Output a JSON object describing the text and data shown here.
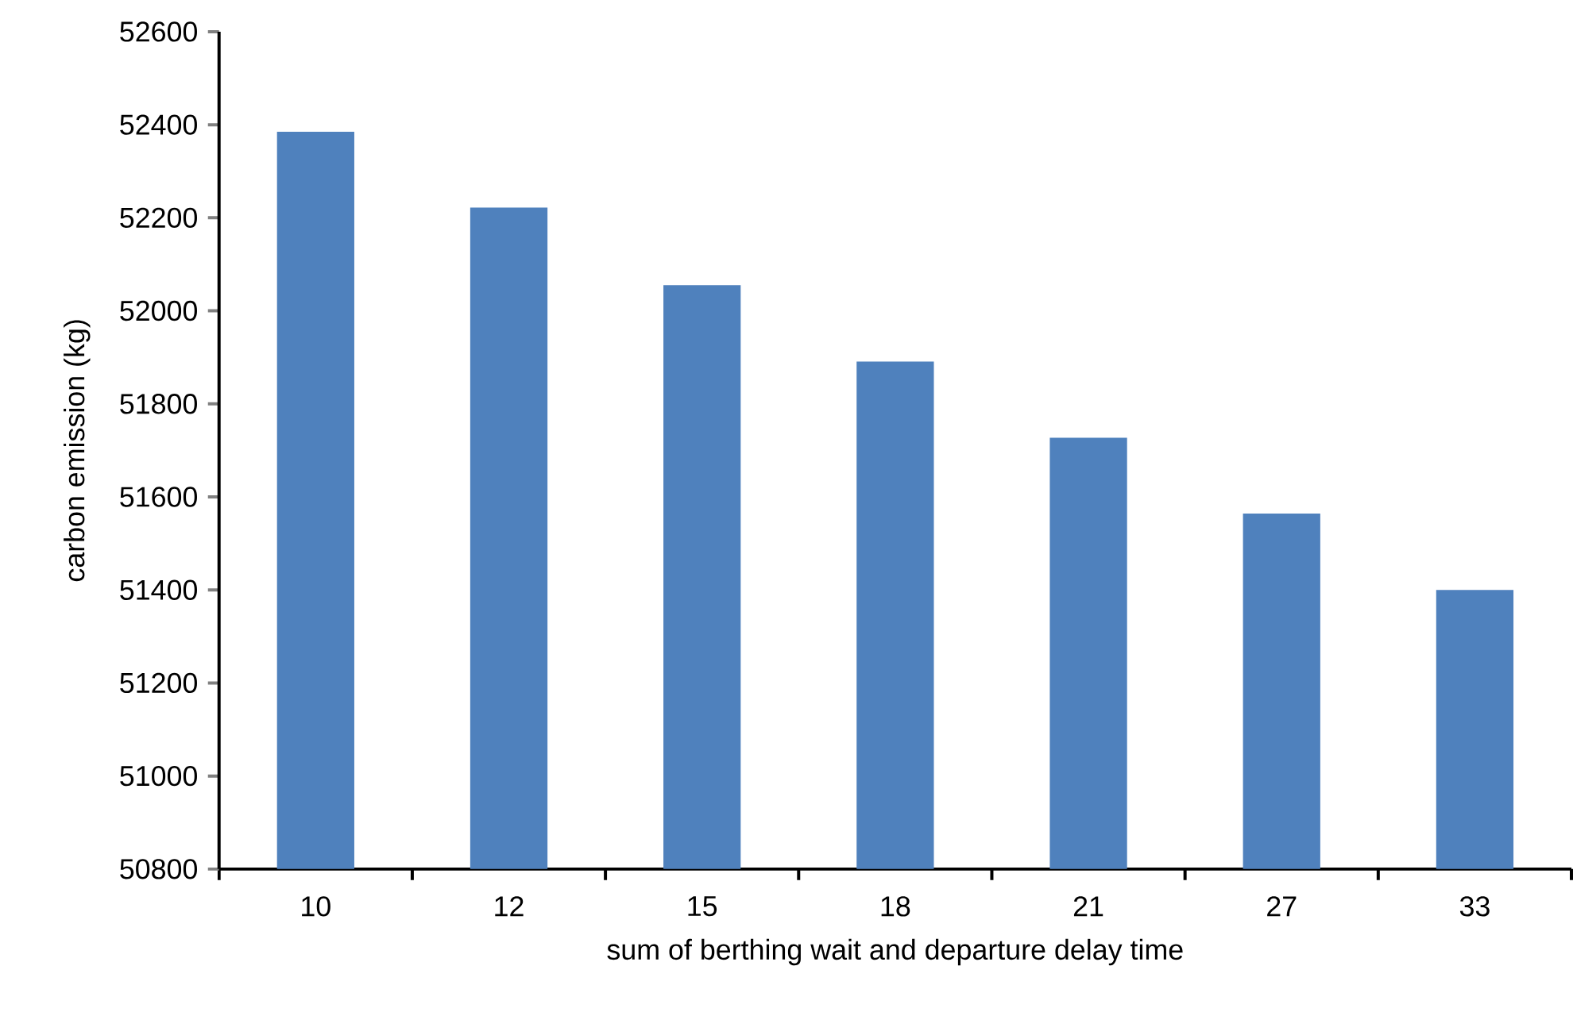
{
  "chart_data": {
    "type": "bar",
    "xlabel": "sum of berthing wait and departure delay time",
    "ylabel": "carbon emission (kg)",
    "categories": [
      "10",
      "12",
      "15",
      "18",
      "21",
      "27",
      "33"
    ],
    "values": [
      52385,
      52222,
      52055,
      51891,
      51727,
      51564,
      51400
    ],
    "color": "#4f81bd",
    "ylim": [
      50800,
      52600
    ],
    "yticks": [
      50800,
      51000,
      51200,
      51400,
      51600,
      51800,
      52000,
      52200,
      52400,
      52600
    ],
    "grid": false
  }
}
